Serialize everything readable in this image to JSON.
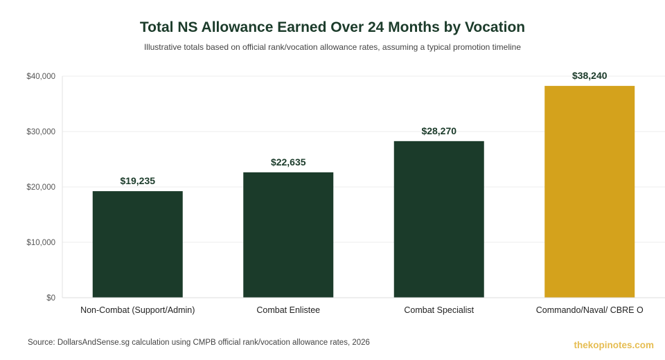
{
  "chart_data": {
    "type": "bar",
    "title": "Total NS Allowance Earned Over 24 Months by Vocation",
    "subtitle": "Illustrative totals based on official rank/vocation allowance rates, assuming a typical promotion timeline",
    "categories": [
      "Non-Combat (Support/Admin)",
      "Combat Enlistee",
      "Combat Specialist",
      "Commando/Naval/ CBRE O"
    ],
    "values": [
      19235,
      22635,
      28270,
      38240
    ],
    "value_labels": [
      "$19,235",
      "$22,635",
      "$28,270",
      "$38,240"
    ],
    "bar_colors": [
      "#1b3b2a",
      "#1b3b2a",
      "#1b3b2a",
      "#d4a21c"
    ],
    "ylim": [
      0,
      40000
    ],
    "yticks": [
      0,
      10000,
      20000,
      30000,
      40000
    ],
    "ytick_labels": [
      "$0",
      "$10,000",
      "$20,000",
      "$30,000",
      "$40,000"
    ],
    "grid": true,
    "xlabel": "",
    "ylabel": ""
  },
  "source": "Source: DollarsAndSense.sg calculation using CMPB official rank/vocation allowance rates, 2026",
  "brand": "thekopinotes.com",
  "colors": {
    "primary": "#1b3b2a",
    "highlight": "#d4a21c",
    "grid": "#ececec",
    "axis_text": "#555555",
    "brand": "#e6bd52"
  }
}
